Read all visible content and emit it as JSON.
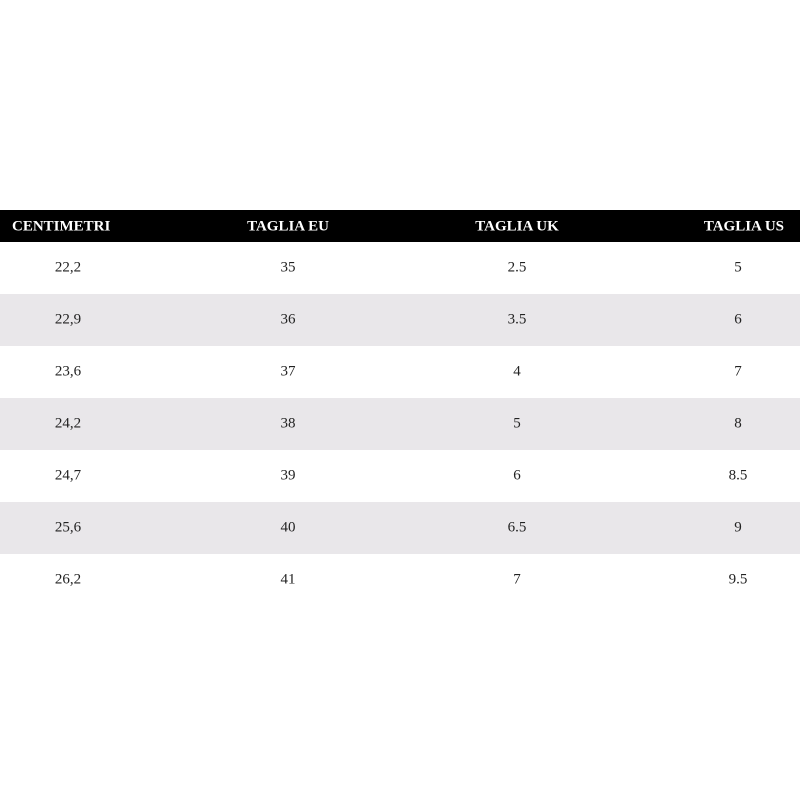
{
  "table": {
    "header": [
      "CENTIMETRI",
      "TAGLIA EU",
      "TAGLIA UK",
      "TAGLIA US"
    ],
    "rows": [
      [
        "22,2",
        "35",
        "2.5",
        "5"
      ],
      [
        "22,9",
        "36",
        "3.5",
        "6"
      ],
      [
        "23,6",
        "37",
        "4",
        "7"
      ],
      [
        "24,2",
        "38",
        "5",
        "8"
      ],
      [
        "24,7",
        "39",
        "6",
        "8.5"
      ],
      [
        "25,6",
        "40",
        "6.5",
        "9"
      ],
      [
        "26,2",
        "41",
        "7",
        "9.5"
      ]
    ]
  }
}
